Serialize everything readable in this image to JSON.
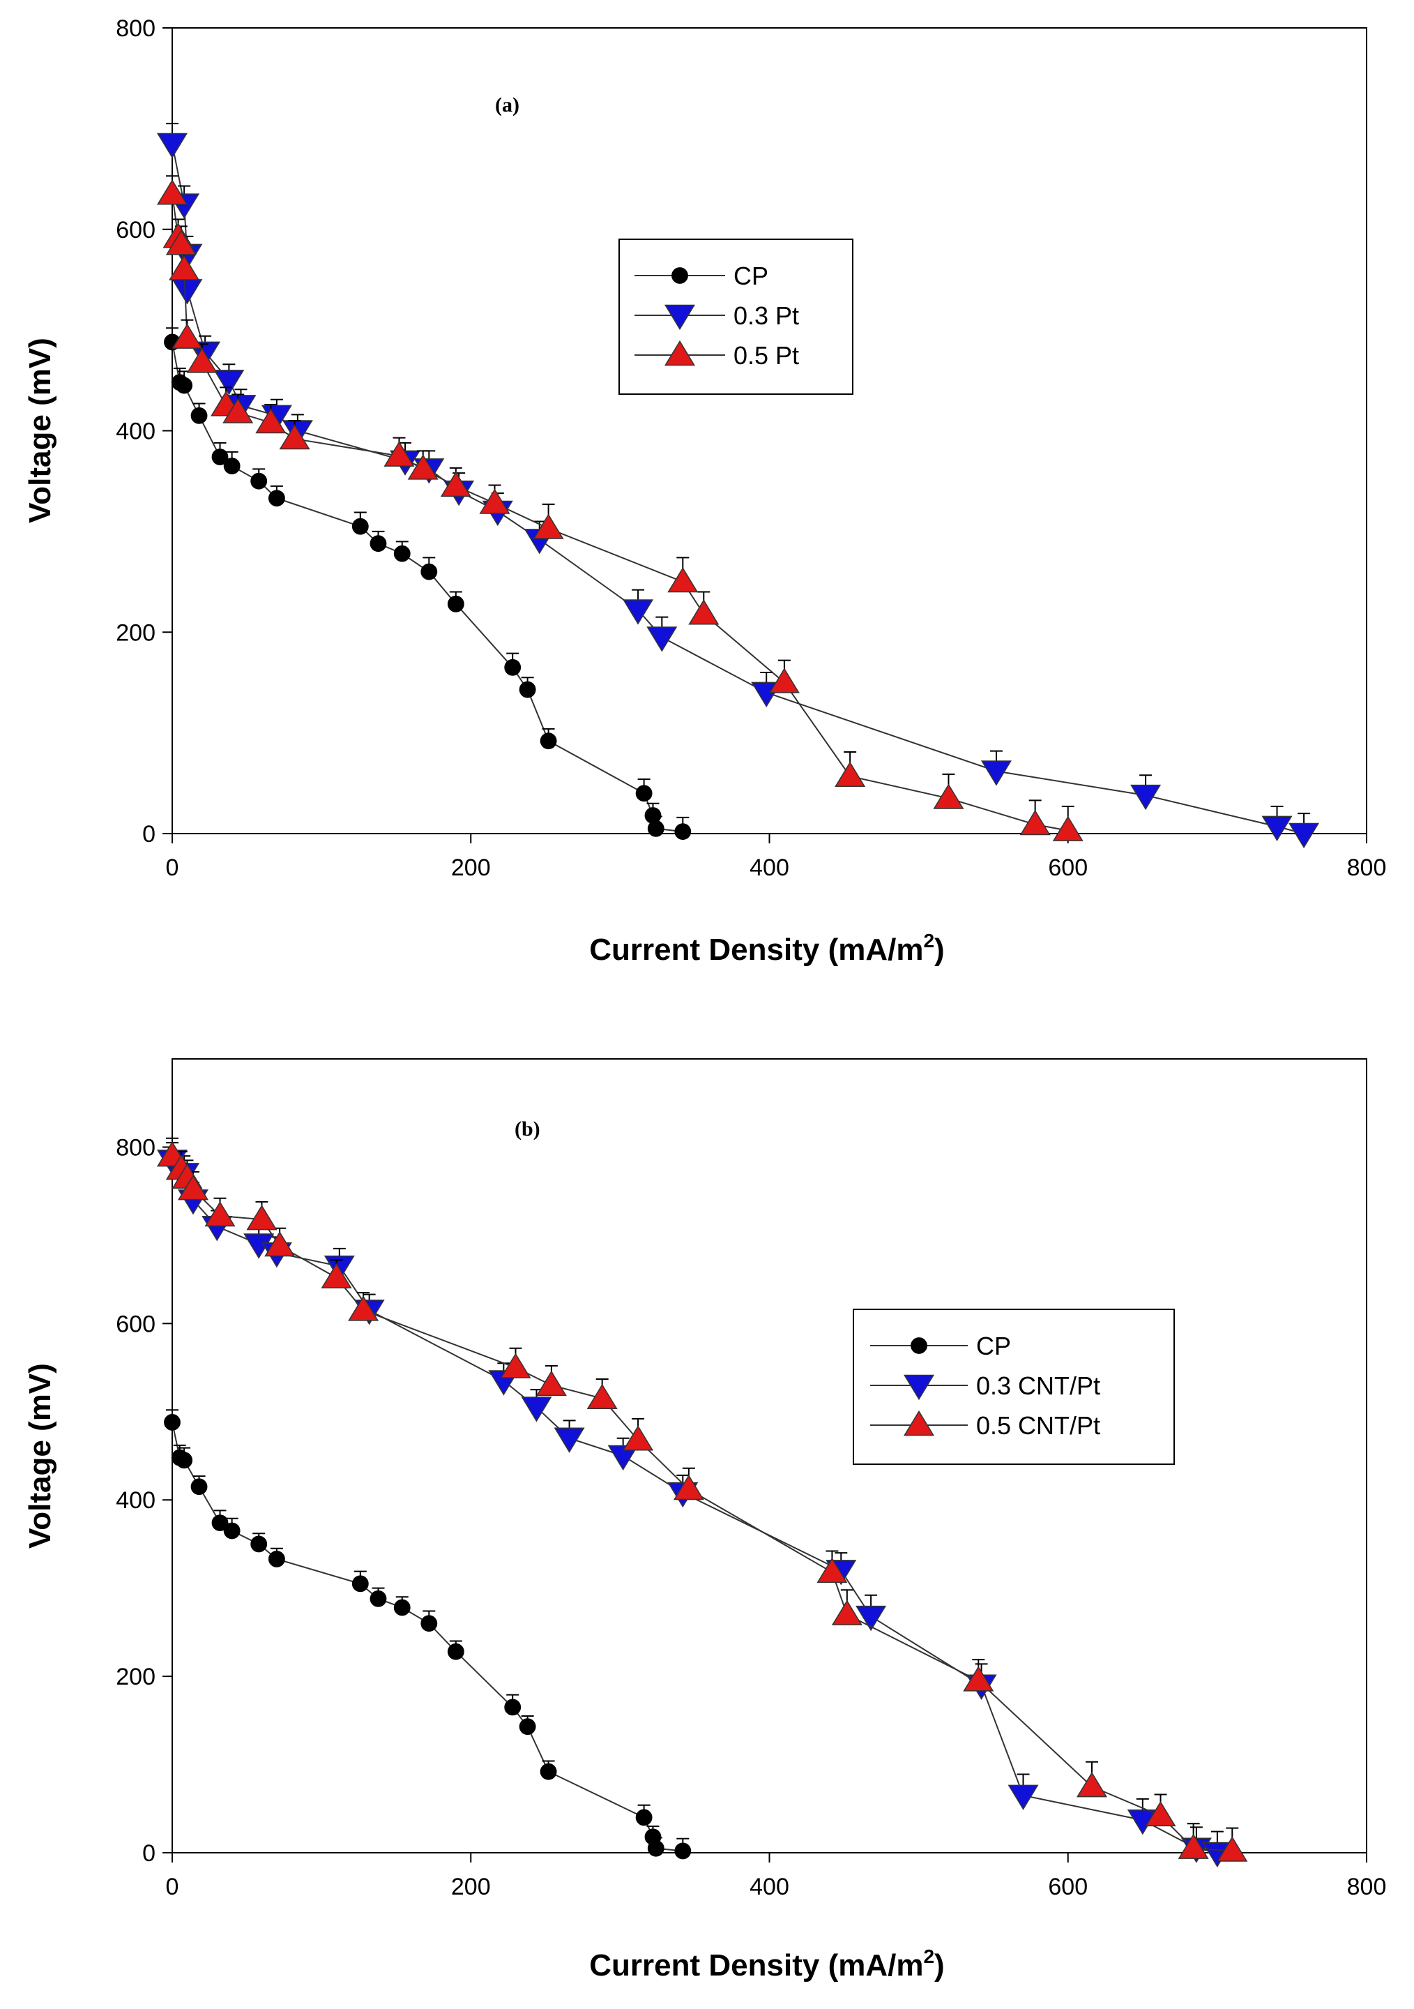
{
  "colors": {
    "cp": "#000000",
    "pt03": "#1010d8",
    "pt05": "#e01818",
    "line": "#333333"
  },
  "chart_data": [
    {
      "type": "line",
      "panel_label": "(a)",
      "xlabel_main": "Current Density (mA/m",
      "xlabel_sup": "2",
      "xlabel_end": ")",
      "ylabel": "Voltage (mV)",
      "xlim": [
        0,
        800
      ],
      "ylim": [
        0,
        800
      ],
      "xticks": [
        0,
        200,
        400,
        600,
        800
      ],
      "yticks": [
        0,
        200,
        400,
        600,
        800
      ],
      "legend_position": "upper-middle",
      "series": [
        {
          "name": "CP",
          "marker": "circle",
          "color": "#000000",
          "x": [
            0,
            5,
            8,
            18,
            32,
            40,
            58,
            70,
            126,
            138,
            154,
            172,
            190,
            228,
            238,
            252,
            316,
            322,
            324,
            342
          ],
          "y": [
            488,
            448,
            445,
            415,
            374,
            365,
            350,
            333,
            305,
            288,
            278,
            260,
            228,
            165,
            143,
            92,
            40,
            18,
            5,
            2
          ],
          "err": [
            14,
            14,
            14,
            12,
            14,
            14,
            12,
            12,
            14,
            12,
            12,
            14,
            12,
            14,
            12,
            12,
            14,
            12,
            12,
            14
          ]
        },
        {
          "name": "0.3 Pt",
          "marker": "triangle-down",
          "color": "#1010d8",
          "x": [
            0,
            8,
            10,
            10,
            22,
            38,
            46,
            70,
            84,
            156,
            172,
            192,
            218,
            246,
            312,
            328,
            398,
            552,
            652,
            740,
            758
          ],
          "y": [
            685,
            625,
            575,
            540,
            478,
            450,
            425,
            415,
            400,
            370,
            362,
            340,
            320,
            292,
            222,
            195,
            140,
            62,
            38,
            7,
            0
          ],
          "err": [
            20,
            18,
            18,
            18,
            16,
            16,
            16,
            16,
            16,
            18,
            18,
            18,
            18,
            18,
            20,
            20,
            20,
            20,
            20,
            20,
            20
          ]
        },
        {
          "name": "0.5 Pt",
          "marker": "triangle-up",
          "color": "#e01818",
          "x": [
            0,
            4,
            6,
            8,
            10,
            20,
            36,
            44,
            66,
            82,
            152,
            168,
            190,
            216,
            252,
            342,
            356,
            410,
            454,
            520,
            578,
            600
          ],
          "y": [
            635,
            592,
            585,
            560,
            492,
            468,
            425,
            418,
            408,
            392,
            375,
            362,
            345,
            328,
            303,
            250,
            218,
            150,
            57,
            35,
            9,
            3
          ],
          "err": [
            18,
            18,
            18,
            18,
            18,
            18,
            18,
            18,
            18,
            18,
            18,
            18,
            18,
            18,
            24,
            24,
            22,
            22,
            24,
            24,
            24,
            24
          ]
        }
      ]
    },
    {
      "type": "line",
      "panel_label": "(b)",
      "xlabel_main": "Current Density (mA/m",
      "xlabel_sup": "2",
      "xlabel_end": ")",
      "ylabel": "Voltage (mV)",
      "xlim": [
        0,
        800
      ],
      "ylim": [
        0,
        900
      ],
      "xticks": [
        0,
        200,
        400,
        600,
        800
      ],
      "yticks": [
        0,
        200,
        400,
        600,
        800
      ],
      "legend_position": "right-middle",
      "series": [
        {
          "name": "CP",
          "marker": "circle",
          "color": "#000000",
          "x": [
            0,
            5,
            8,
            18,
            32,
            40,
            58,
            70,
            126,
            138,
            154,
            172,
            190,
            228,
            238,
            252,
            316,
            322,
            324,
            342
          ],
          "y": [
            488,
            448,
            445,
            415,
            374,
            365,
            350,
            333,
            305,
            288,
            278,
            260,
            228,
            165,
            143,
            92,
            40,
            18,
            5,
            2
          ],
          "err": [
            14,
            14,
            14,
            12,
            14,
            14,
            12,
            12,
            14,
            12,
            12,
            14,
            12,
            14,
            12,
            12,
            14,
            12,
            12,
            14
          ]
        },
        {
          "name": "0.3 CNT/Pt",
          "marker": "triangle-down",
          "color": "#1010d8",
          "x": [
            0,
            8,
            14,
            30,
            58,
            70,
            112,
            132,
            222,
            244,
            266,
            302,
            342,
            448,
            468,
            542,
            570,
            650,
            686,
            700
          ],
          "y": [
            785,
            770,
            740,
            710,
            690,
            680,
            665,
            615,
            535,
            505,
            470,
            450,
            408,
            320,
            268,
            190,
            65,
            37,
            5,
            0
          ],
          "err": [
            20,
            20,
            20,
            18,
            18,
            18,
            20,
            18,
            20,
            20,
            20,
            20,
            20,
            20,
            24,
            24,
            24,
            24,
            24,
            24
          ]
        },
        {
          "name": "0.5 CNT/Pt",
          "marker": "triangle-up",
          "color": "#e01818",
          "x": [
            0,
            6,
            10,
            14,
            32,
            60,
            72,
            110,
            128,
            230,
            254,
            288,
            312,
            346,
            442,
            452,
            540,
            616,
            662,
            684,
            710
          ],
          "y": [
            790,
            775,
            765,
            752,
            722,
            718,
            688,
            652,
            615,
            550,
            530,
            515,
            468,
            412,
            318,
            270,
            195,
            75,
            42,
            5,
            2
          ],
          "err": [
            20,
            20,
            20,
            20,
            20,
            20,
            20,
            20,
            20,
            22,
            22,
            22,
            24,
            24,
            24,
            28,
            24,
            28,
            24,
            28,
            26
          ]
        }
      ]
    }
  ]
}
